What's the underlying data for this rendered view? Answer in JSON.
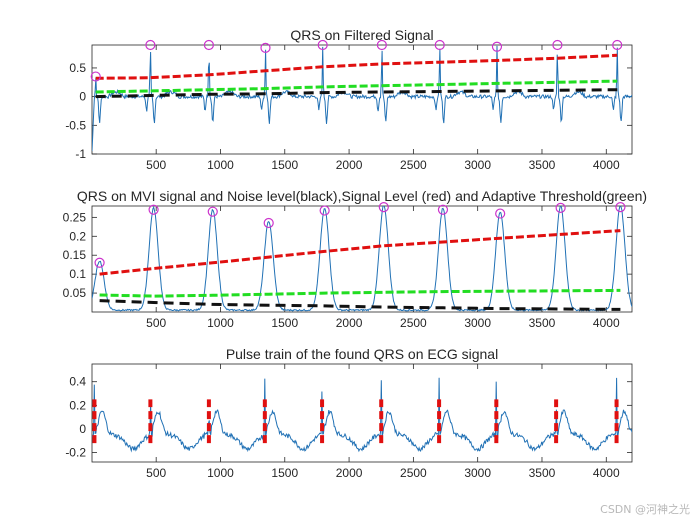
{
  "watermark": "CSDN @河神之光",
  "colors": {
    "trace": "#2171b5",
    "signal": "#e01010",
    "threshold": "#22dd22",
    "noise": "#111111",
    "marker": "#cc33cc",
    "axis": "#262626"
  },
  "chart_data": [
    {
      "type": "line",
      "title": "QRS on Filtered Signal",
      "xlim": [
        1,
        4200
      ],
      "ylim": [
        -1,
        0.9
      ],
      "xticks": [
        500,
        1000,
        1500,
        2000,
        2500,
        3000,
        3500,
        4000
      ],
      "yticks": [
        -1,
        -0.5,
        0,
        0.5
      ],
      "ytick_labels": [
        "-1",
        "-0.5",
        "0",
        "0.5"
      ],
      "signal_baseline": 0,
      "peaks_x": [
        30,
        455,
        910,
        1350,
        1795,
        2255,
        2705,
        3150,
        3620,
        4085
      ],
      "peaks_y": [
        0.35,
        0.9,
        0.9,
        0.85,
        0.9,
        0.9,
        0.9,
        0.87,
        0.9,
        0.9
      ],
      "series": [
        {
          "name": "Signal Level",
          "style": "dash",
          "x": [
            30,
            455,
            910,
            1350,
            1795,
            2255,
            2705,
            3150,
            3620,
            4085
          ],
          "y": [
            0.32,
            0.33,
            0.38,
            0.45,
            0.52,
            0.57,
            0.6,
            0.63,
            0.67,
            0.72
          ]
        },
        {
          "name": "Adaptive Threshold",
          "style": "dash",
          "x": [
            30,
            455,
            910,
            1350,
            1795,
            2255,
            2705,
            3150,
            3620,
            4085
          ],
          "y": [
            0.08,
            0.1,
            0.12,
            0.14,
            0.17,
            0.19,
            0.21,
            0.23,
            0.25,
            0.27
          ]
        },
        {
          "name": "Noise Level",
          "style": "dash",
          "x": [
            30,
            455,
            910,
            1350,
            1795,
            2255,
            2705,
            3150,
            3620,
            4085
          ],
          "y": [
            0.0,
            0.02,
            0.04,
            0.05,
            0.07,
            0.08,
            0.09,
            0.1,
            0.11,
            0.12
          ]
        }
      ]
    },
    {
      "type": "line",
      "title": "QRS on MVI signal and Noise level(black),Signal Level (red) and Adaptive Threshold(green)",
      "xlim": [
        1,
        4200
      ],
      "ylim": [
        0,
        0.28
      ],
      "xticks": [
        500,
        1000,
        1500,
        2000,
        2500,
        3000,
        3500,
        4000
      ],
      "yticks": [
        0.05,
        0.1,
        0.15,
        0.2,
        0.25
      ],
      "ytick_labels": [
        "0.05",
        "0.1",
        "0.15",
        "0.2",
        "0.25"
      ],
      "signal_baseline": 0.003,
      "peaks_x": [
        60,
        480,
        940,
        1375,
        1810,
        2270,
        2730,
        3175,
        3645,
        4110
      ],
      "peaks_y": [
        0.13,
        0.27,
        0.265,
        0.235,
        0.268,
        0.277,
        0.27,
        0.26,
        0.275,
        0.277
      ],
      "series": [
        {
          "name": "Signal Level",
          "style": "dash",
          "x": [
            60,
            480,
            940,
            1375,
            1810,
            2270,
            2730,
            3175,
            3645,
            4110
          ],
          "y": [
            0.1,
            0.115,
            0.13,
            0.145,
            0.16,
            0.175,
            0.185,
            0.195,
            0.205,
            0.215
          ]
        },
        {
          "name": "Adaptive Threshold",
          "style": "dash",
          "x": [
            60,
            480,
            940,
            1375,
            1810,
            2270,
            2730,
            3175,
            3645,
            4110
          ],
          "y": [
            0.045,
            0.042,
            0.044,
            0.047,
            0.05,
            0.052,
            0.054,
            0.055,
            0.056,
            0.057
          ]
        },
        {
          "name": "Noise Level",
          "style": "dash",
          "x": [
            60,
            480,
            940,
            1375,
            1810,
            2270,
            2730,
            3175,
            3645,
            4110
          ],
          "y": [
            0.03,
            0.025,
            0.02,
            0.018,
            0.016,
            0.013,
            0.011,
            0.009,
            0.008,
            0.007
          ]
        }
      ]
    },
    {
      "type": "line",
      "title": "Pulse train of the found QRS on ECG signal",
      "xlim": [
        1,
        4200
      ],
      "ylim": [
        -0.28,
        0.55
      ],
      "xticks": [
        500,
        1000,
        1500,
        2000,
        2500,
        3000,
        3500,
        4000
      ],
      "yticks": [
        -0.2,
        0,
        0.2,
        0.4
      ],
      "ytick_labels": [
        "-0.2",
        "0",
        "0.2",
        "0.4"
      ],
      "signal_baseline": 0,
      "pulses_x": [
        20,
        455,
        910,
        1345,
        1790,
        2250,
        2700,
        3145,
        3610,
        4080
      ],
      "pulse_range": [
        -0.12,
        0.25
      ],
      "series": []
    }
  ]
}
